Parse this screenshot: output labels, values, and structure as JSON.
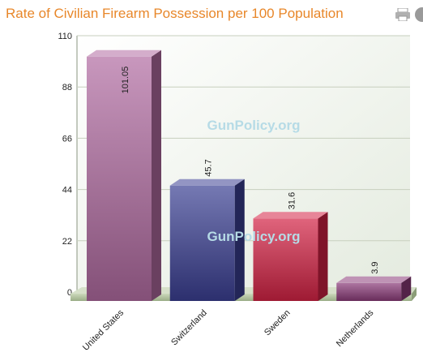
{
  "page": {
    "title": "Rate of Civilian Firearm Possession per 100 Population",
    "print_icon": "printer-icon",
    "extra_icon": "circle-icon"
  },
  "watermark": "GunPolicy.org",
  "colors": {
    "title": "#e8872a",
    "plot_bg_top": "#ffffff",
    "plot_bg_bottom": "#e4ebdf",
    "gridline": "#c7cfbe",
    "floor": "#b5c4a4"
  },
  "chart_data": {
    "type": "bar",
    "title": "Rate of Civilian Firearm Possession per 100 Population",
    "categories": [
      "United States",
      "Switzerland",
      "Sweden",
      "Netherlands"
    ],
    "values": [
      101.05,
      45.7,
      31.6,
      3.9
    ],
    "data_labels": [
      "101.05",
      "45.7",
      "31.6",
      "3.9"
    ],
    "bar_colors": [
      "#b06aa0",
      "#3a3f92",
      "#d32244",
      "#8a3a78"
    ],
    "ylim": [
      0,
      110
    ],
    "yticks": [
      "0",
      "22",
      "44",
      "66",
      "88",
      "110"
    ],
    "grid": true,
    "xlabel": "",
    "ylabel": ""
  }
}
